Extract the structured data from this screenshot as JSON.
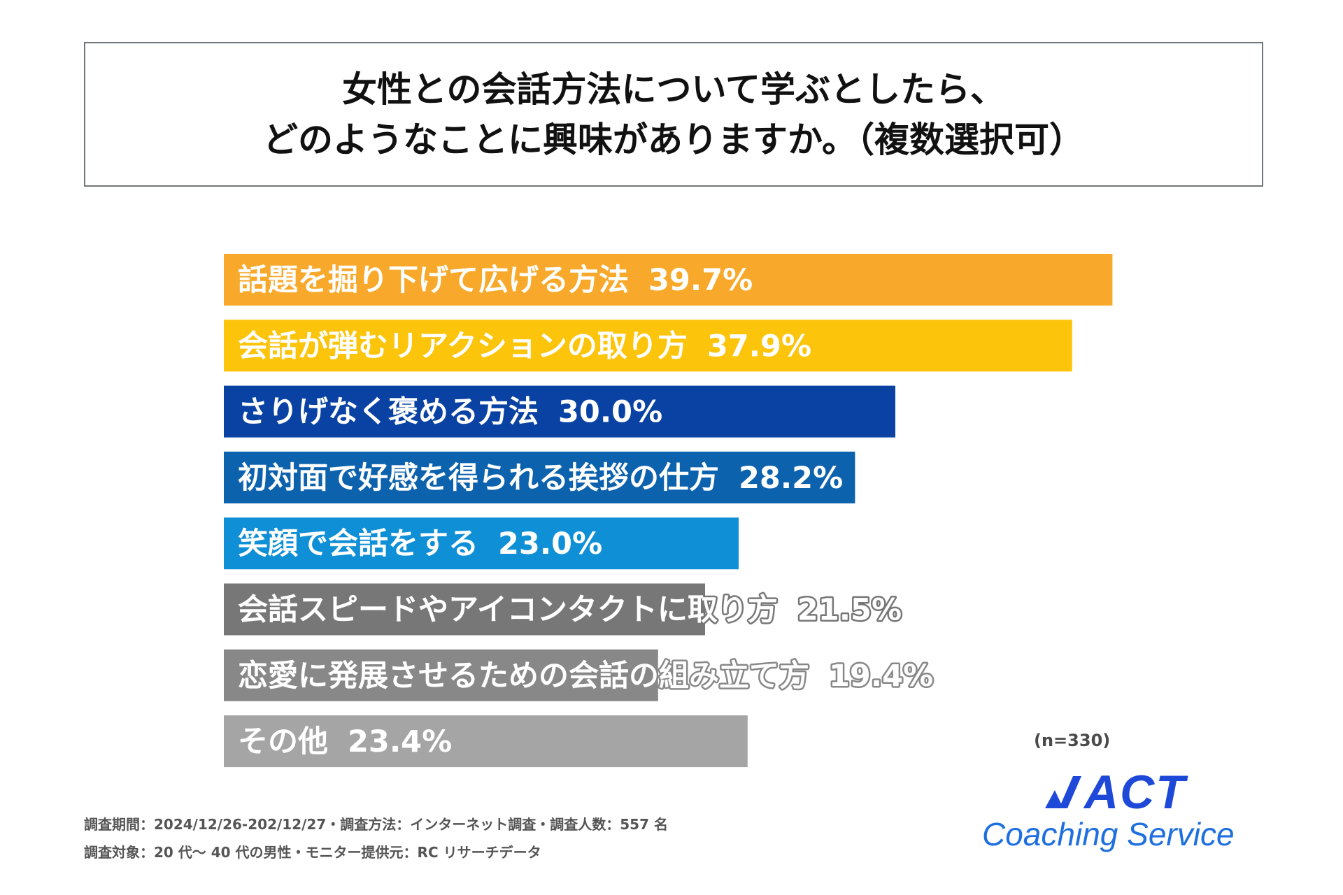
{
  "chart_data": {
    "type": "bar",
    "orientation": "horizontal",
    "title": "女性との会話方法について学ぶとしたら、どのようなことに興味がありますか。（複数選択可）",
    "title_lines": [
      "女性との会話方法について学ぶとしたら、",
      "どのようなことに興味がありますか。（複数選択可）"
    ],
    "categories": [
      "話題を掘り下げて広げる方法",
      "会話が弾むリアクションの取り方",
      "さりげなく褒める方法",
      "初対面で好感を得られる挨拶の仕方",
      "笑顔で会話をする",
      "会話スピードやアイコンタクトに取り方",
      "恋愛に発展させるための会話の組み立て方",
      "その他"
    ],
    "values": [
      39.7,
      37.9,
      30.0,
      28.2,
      23.0,
      21.5,
      19.4,
      23.4
    ],
    "value_labels": [
      "39.7%",
      "37.9%",
      "30.0%",
      "28.2%",
      "23.0%",
      "21.5%",
      "19.4%",
      "23.4%"
    ],
    "colors": [
      "#f8a92b",
      "#fcc40b",
      "#0942a3",
      "#0c62ad",
      "#0f8fd6",
      "#777777",
      "#888888",
      "#a5a5a5"
    ],
    "unit": "%",
    "xlim": [
      0,
      40
    ],
    "grid": false,
    "legend": "none"
  },
  "sample_size": "(n=330)",
  "footnotes": [
    "調査期間：2024/12/26-202/12/27・調査方法：インターネット調査・調査人数：557 名",
    "調査対象：20 代～ 40 代の男性・モニター提供元：RC リサーチデータ"
  ],
  "logo": {
    "brand": "ACT",
    "tagline": "Coaching Service",
    "color": "#1e49d8"
  }
}
